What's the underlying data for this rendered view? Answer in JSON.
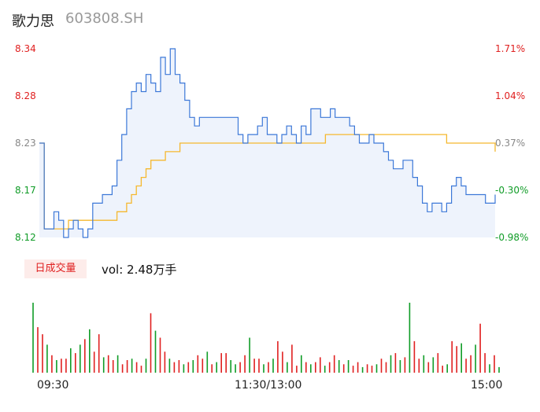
{
  "header": {
    "name": "歌力思",
    "code": "603808.SH"
  },
  "colors": {
    "up": "#e02020",
    "down": "#109c27",
    "flat": "#888888",
    "price_line": "#3c78d8",
    "avg_line": "#f5b82e"
  },
  "volume_panel": {
    "badge": "日成交量",
    "vol_text": "vol: 2.48万手"
  },
  "chart_data": [
    {
      "type": "line",
      "title": "",
      "y_ticks": [
        "8.34",
        "8.28",
        "8.23",
        "8.17",
        "8.12"
      ],
      "y_ticks_pct": [
        "1.71%",
        "1.04%",
        "0.37%",
        "-0.30%",
        "-0.98%"
      ],
      "ylim": [
        8.12,
        8.34
      ],
      "x_ticks": [
        "09:30",
        "11:30/13:00",
        "15:00"
      ],
      "prev_close": 8.2,
      "series": [
        {
          "role": "price",
          "values": [
            8.23,
            8.13,
            8.13,
            8.15,
            8.14,
            8.12,
            8.13,
            8.14,
            8.13,
            8.12,
            8.13,
            8.16,
            8.16,
            8.17,
            8.17,
            8.18,
            8.21,
            8.24,
            8.27,
            8.29,
            8.3,
            8.29,
            8.31,
            8.3,
            8.29,
            8.33,
            8.31,
            8.34,
            8.31,
            8.3,
            8.28,
            8.26,
            8.25,
            8.26,
            8.26,
            8.26,
            8.26,
            8.26,
            8.26,
            8.26,
            8.26,
            8.24,
            8.23,
            8.24,
            8.24,
            8.25,
            8.26,
            8.24,
            8.24,
            8.23,
            8.24,
            8.25,
            8.24,
            8.23,
            8.25,
            8.24,
            8.27,
            8.27,
            8.26,
            8.26,
            8.27,
            8.26,
            8.26,
            8.26,
            8.25,
            8.24,
            8.23,
            8.23,
            8.24,
            8.23,
            8.23,
            8.22,
            8.21,
            8.2,
            8.2,
            8.21,
            8.21,
            8.19,
            8.18,
            8.16,
            8.15,
            8.16,
            8.16,
            8.15,
            8.16,
            8.18,
            8.19,
            8.18,
            8.17,
            8.17,
            8.17,
            8.17,
            8.16,
            8.16,
            8.17
          ],
          "color": "#3c78d8"
        },
        {
          "role": "average",
          "values": [
            8.23,
            8.13,
            8.13,
            8.13,
            8.13,
            8.13,
            8.14,
            8.14,
            8.14,
            8.14,
            8.14,
            8.14,
            8.14,
            8.14,
            8.14,
            8.14,
            8.15,
            8.15,
            8.16,
            8.17,
            8.18,
            8.19,
            8.2,
            8.21,
            8.21,
            8.21,
            8.22,
            8.22,
            8.22,
            8.23,
            8.23,
            8.23,
            8.23,
            8.23,
            8.23,
            8.23,
            8.23,
            8.23,
            8.23,
            8.23,
            8.23,
            8.23,
            8.23,
            8.23,
            8.23,
            8.23,
            8.23,
            8.23,
            8.23,
            8.23,
            8.23,
            8.23,
            8.23,
            8.23,
            8.23,
            8.23,
            8.23,
            8.23,
            8.23,
            8.24,
            8.24,
            8.24,
            8.24,
            8.24,
            8.24,
            8.24,
            8.24,
            8.24,
            8.24,
            8.24,
            8.24,
            8.24,
            8.24,
            8.24,
            8.24,
            8.24,
            8.24,
            8.24,
            8.24,
            8.24,
            8.24,
            8.24,
            8.24,
            8.24,
            8.23,
            8.23,
            8.23,
            8.23,
            8.23,
            8.23,
            8.23,
            8.23,
            8.23,
            8.23,
            8.22
          ],
          "color": "#f5b82e"
        }
      ]
    },
    {
      "type": "bar",
      "title": "",
      "series": [
        {
          "role": "volume",
          "values": [
            100,
            65,
            55,
            40,
            25,
            18,
            20,
            20,
            35,
            28,
            40,
            48,
            62,
            30,
            55,
            22,
            25,
            18,
            25,
            12,
            18,
            20,
            15,
            10,
            20,
            85,
            60,
            50,
            30,
            20,
            15,
            18,
            12,
            15,
            18,
            25,
            20,
            30,
            12,
            15,
            28,
            28,
            18,
            12,
            15,
            25,
            50,
            20,
            20,
            12,
            15,
            20,
            45,
            30,
            15,
            40,
            10,
            25,
            15,
            12,
            15,
            22,
            10,
            15,
            25,
            18,
            12,
            18,
            10,
            15,
            8,
            12,
            10,
            12,
            20,
            15,
            25,
            28,
            18,
            22,
            100,
            45,
            20,
            25,
            15,
            22,
            28,
            10,
            12,
            45,
            38,
            42,
            20,
            25,
            40,
            70,
            28,
            12,
            25,
            8
          ],
          "colors": [
            "d",
            "u",
            "u",
            "d",
            "u",
            "d",
            "u",
            "u",
            "d",
            "u",
            "d",
            "u",
            "d",
            "u",
            "u",
            "d",
            "u",
            "u",
            "d",
            "u",
            "u",
            "d",
            "u",
            "u",
            "d",
            "u",
            "d",
            "u",
            "u",
            "d",
            "u",
            "u",
            "d",
            "u",
            "d",
            "u",
            "u",
            "d",
            "u",
            "d",
            "u",
            "u",
            "d",
            "d",
            "u",
            "u",
            "d",
            "u",
            "u",
            "d",
            "u",
            "d",
            "u",
            "u",
            "d",
            "u",
            "u",
            "d",
            "u",
            "d",
            "u",
            "u",
            "d",
            "u",
            "u",
            "d",
            "u",
            "d",
            "u",
            "u",
            "d",
            "u",
            "u",
            "d",
            "u",
            "u",
            "d",
            "u",
            "d",
            "u",
            "d",
            "u",
            "u",
            "d",
            "u",
            "d",
            "u",
            "u",
            "d",
            "u",
            "u",
            "d",
            "u",
            "u",
            "d",
            "u",
            "u",
            "d",
            "u",
            "d"
          ]
        }
      ]
    }
  ]
}
